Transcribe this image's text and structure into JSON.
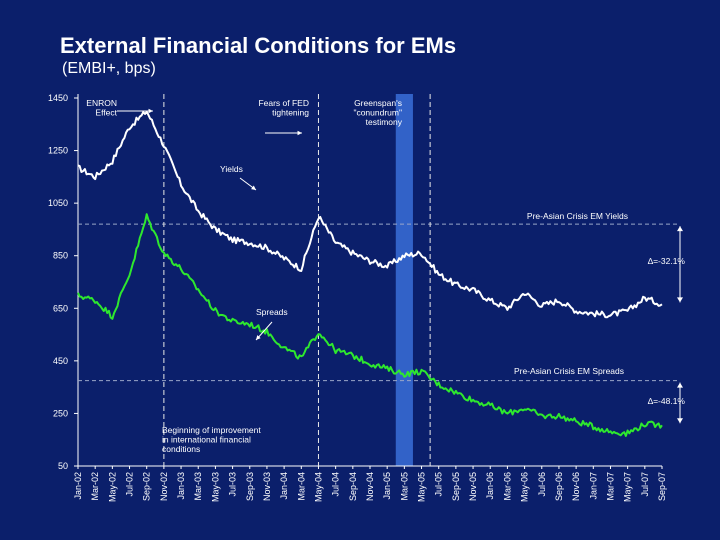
{
  "header": {
    "title": "External Financial Conditions for EMs",
    "subtitle": "(EMBI+, bps)"
  },
  "colors": {
    "background": "#0b1f6b",
    "yields": "#ffffff",
    "spreads": "#2ee82e",
    "highlight": "#3a6fd8",
    "reference": "#9aa6c8"
  },
  "chart_data": {
    "type": "line",
    "ylim": [
      50,
      1450
    ],
    "yticks": [
      50,
      250,
      450,
      650,
      850,
      1050,
      1250,
      1450
    ],
    "xticks": [
      "Jan-02",
      "Mar-02",
      "May-02",
      "Jul-02",
      "Sep-02",
      "Nov-02",
      "Jan-03",
      "Mar-03",
      "May-03",
      "Jul-03",
      "Sep-03",
      "Nov-03",
      "Jan-04",
      "Mar-04",
      "May-04",
      "Jul-04",
      "Sep-04",
      "Nov-04",
      "Jan-05",
      "Mar-05",
      "May-05",
      "Jul-05",
      "Sep-05",
      "Nov-05",
      "Jan-06",
      "Mar-06",
      "May-06",
      "Jul-06",
      "Sep-06",
      "Nov-06",
      "Jan-07",
      "Mar-07",
      "May-07",
      "Jul-07",
      "Sep-07"
    ],
    "grid": false,
    "series": [
      {
        "name": "Yields",
        "x": [
          "Jan-02",
          "Mar-02",
          "May-02",
          "Jul-02",
          "Sep-02",
          "Nov-02",
          "Jan-03",
          "Mar-03",
          "May-03",
          "Jul-03",
          "Sep-03",
          "Nov-03",
          "Jan-04",
          "Mar-04",
          "May-04",
          "Jul-04",
          "Sep-04",
          "Nov-04",
          "Jan-05",
          "Mar-05",
          "May-05",
          "Jul-05",
          "Sep-05",
          "Nov-05",
          "Jan-06",
          "Mar-06",
          "May-06",
          "Jul-06",
          "Sep-06",
          "Nov-06",
          "Jan-07",
          "Mar-07",
          "May-07",
          "Jul-07",
          "Sep-07"
        ],
        "values": [
          1185,
          1150,
          1210,
          1340,
          1400,
          1270,
          1120,
          1020,
          950,
          910,
          900,
          880,
          840,
          800,
          1000,
          900,
          860,
          830,
          810,
          850,
          860,
          780,
          740,
          720,
          680,
          650,
          710,
          660,
          680,
          640,
          630,
          625,
          640,
          690,
          665
        ]
      },
      {
        "name": "Spreads",
        "x": [
          "Jan-02",
          "Mar-02",
          "May-02",
          "Jul-02",
          "Sep-02",
          "Nov-02",
          "Jan-03",
          "Mar-03",
          "May-03",
          "Jul-03",
          "Sep-03",
          "Nov-03",
          "Jan-04",
          "Mar-04",
          "May-04",
          "Jul-04",
          "Sep-04",
          "Nov-04",
          "Jan-05",
          "Mar-05",
          "May-05",
          "Jul-05",
          "Sep-05",
          "Nov-05",
          "Jan-06",
          "Mar-06",
          "May-06",
          "Jul-06",
          "Sep-06",
          "Nov-06",
          "Jan-07",
          "Mar-07",
          "May-07",
          "Jul-07",
          "Sep-07"
        ],
        "values": [
          700,
          680,
          620,
          780,
          1000,
          860,
          800,
          720,
          640,
          600,
          590,
          560,
          500,
          460,
          560,
          490,
          470,
          440,
          420,
          400,
          410,
          360,
          330,
          300,
          280,
          250,
          270,
          240,
          240,
          220,
          200,
          180,
          175,
          210,
          205
        ]
      }
    ],
    "reference_lines": [
      {
        "label": "Pre-Asian Crisis EM Yields",
        "value": 970
      },
      {
        "label": "Pre-Asian Crisis EM Spreads",
        "value": 375
      }
    ],
    "event_lines": [
      {
        "x": "Nov-02"
      },
      {
        "x": "May-04"
      },
      {
        "x": "Jun-05"
      }
    ],
    "highlight_band": [
      "Feb-05",
      "Apr-05"
    ],
    "annotations": [
      {
        "id": "enron",
        "text": [
          "ENRON",
          "Effect"
        ]
      },
      {
        "id": "fed",
        "text": [
          "Fears of FED",
          "tightening"
        ]
      },
      {
        "id": "greenspan",
        "text": [
          "Greenspan's",
          "\"conundrum\"",
          "testimony"
        ]
      },
      {
        "id": "yields",
        "text": [
          "Yields"
        ]
      },
      {
        "id": "spreads",
        "text": [
          "Spreads"
        ]
      },
      {
        "id": "improvement",
        "text": [
          "Beginning of improvement",
          "in international financial",
          "conditions"
        ]
      },
      {
        "id": "delta_yields",
        "text": [
          "∆=-32.1%"
        ]
      },
      {
        "id": "delta_spreads",
        "text": [
          "∆=-48.1%"
        ]
      },
      {
        "id": "ref_yields",
        "text": [
          "Pre-Asian Crisis EM Yields"
        ]
      },
      {
        "id": "ref_spreads",
        "text": [
          "Pre-Asian Crisis EM Spreads"
        ]
      }
    ]
  }
}
